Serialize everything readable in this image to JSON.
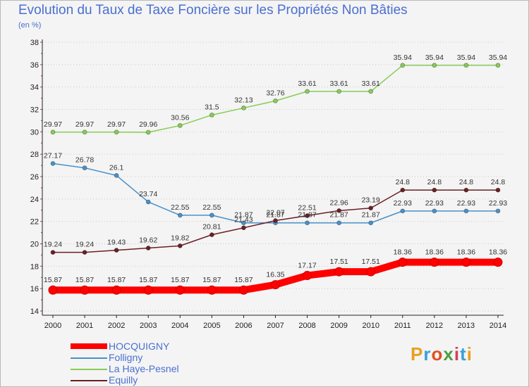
{
  "title": "Evolution du Taux de Taxe Foncière sur les Propriétés Non Bâties",
  "subtitle": "(en %)",
  "logo": {
    "text": "Proxiti",
    "colors": [
      "#e8a020",
      "#3aa0d8",
      "#e05020",
      "#4aa040",
      "#d04060",
      "#3aa0d8",
      "#e8a020"
    ]
  },
  "chart_data": {
    "type": "line",
    "x": [
      "2000",
      "2001",
      "2002",
      "2003",
      "2004",
      "2005",
      "2006",
      "2007",
      "2008",
      "2009",
      "2010",
      "2011",
      "2012",
      "2013",
      "2014"
    ],
    "ylim": [
      14,
      38
    ],
    "yticks": [
      14,
      16,
      18,
      20,
      22,
      24,
      26,
      28,
      30,
      32,
      34,
      36,
      38
    ],
    "grid": "horizontal-dotted",
    "legend": "bottom-left",
    "series": [
      {
        "name": "HOCQUIGNY",
        "color": "#ff0000",
        "emphasis": true,
        "values": [
          15.87,
          15.87,
          15.87,
          15.87,
          15.87,
          15.87,
          15.87,
          16.35,
          17.17,
          17.51,
          17.51,
          18.36,
          18.36,
          18.36,
          18.36
        ],
        "labels": [
          "15.87",
          "15.87",
          "15.87",
          "15.87",
          "15.87",
          "15.87",
          "15.87",
          "16.35",
          "17.17",
          "17.51",
          "17.51",
          "18.36",
          "18.36",
          "18.36",
          "18.36"
        ]
      },
      {
        "name": "Folligny",
        "color": "#4a90c8",
        "values": [
          27.17,
          26.78,
          26.1,
          23.74,
          22.55,
          22.55,
          21.87,
          21.87,
          21.87,
          21.87,
          21.87,
          22.93,
          22.93,
          22.93,
          22.93
        ],
        "labels": [
          "27.17",
          "26.78",
          "26.1",
          "23.74",
          "22.55",
          "22.55",
          "21.87",
          "21.87",
          "21.87",
          "21.87",
          "21.87",
          "22.93",
          "22.93",
          "22.93",
          "22.93"
        ]
      },
      {
        "name": "La Haye-Pesnel",
        "color": "#88cc55",
        "values": [
          29.97,
          29.97,
          29.97,
          29.96,
          30.56,
          31.5,
          32.13,
          32.76,
          33.61,
          33.61,
          33.61,
          35.94,
          35.94,
          35.94,
          35.94
        ],
        "labels": [
          "29.97",
          "29.97",
          "29.97",
          "29.96",
          "30.56",
          "31.5",
          "32.13",
          "32.76",
          "33.61",
          "33.61",
          "33.61",
          "35.94",
          "35.94",
          "35.94",
          "35.94"
        ]
      },
      {
        "name": "Equilly",
        "color": "#6b1f24",
        "values": [
          19.24,
          19.24,
          19.43,
          19.62,
          19.82,
          20.81,
          21.43,
          22.07,
          22.51,
          22.96,
          23.19,
          24.8,
          24.8,
          24.8,
          24.8
        ],
        "labels": [
          "19.24",
          "19.24",
          "19.43",
          "19.62",
          "19.82",
          "20.81",
          "21.43",
          "22.07",
          "22.51",
          "22.96",
          "23.19",
          "24.8",
          "24.8",
          "24.8",
          "24.8"
        ]
      }
    ]
  }
}
